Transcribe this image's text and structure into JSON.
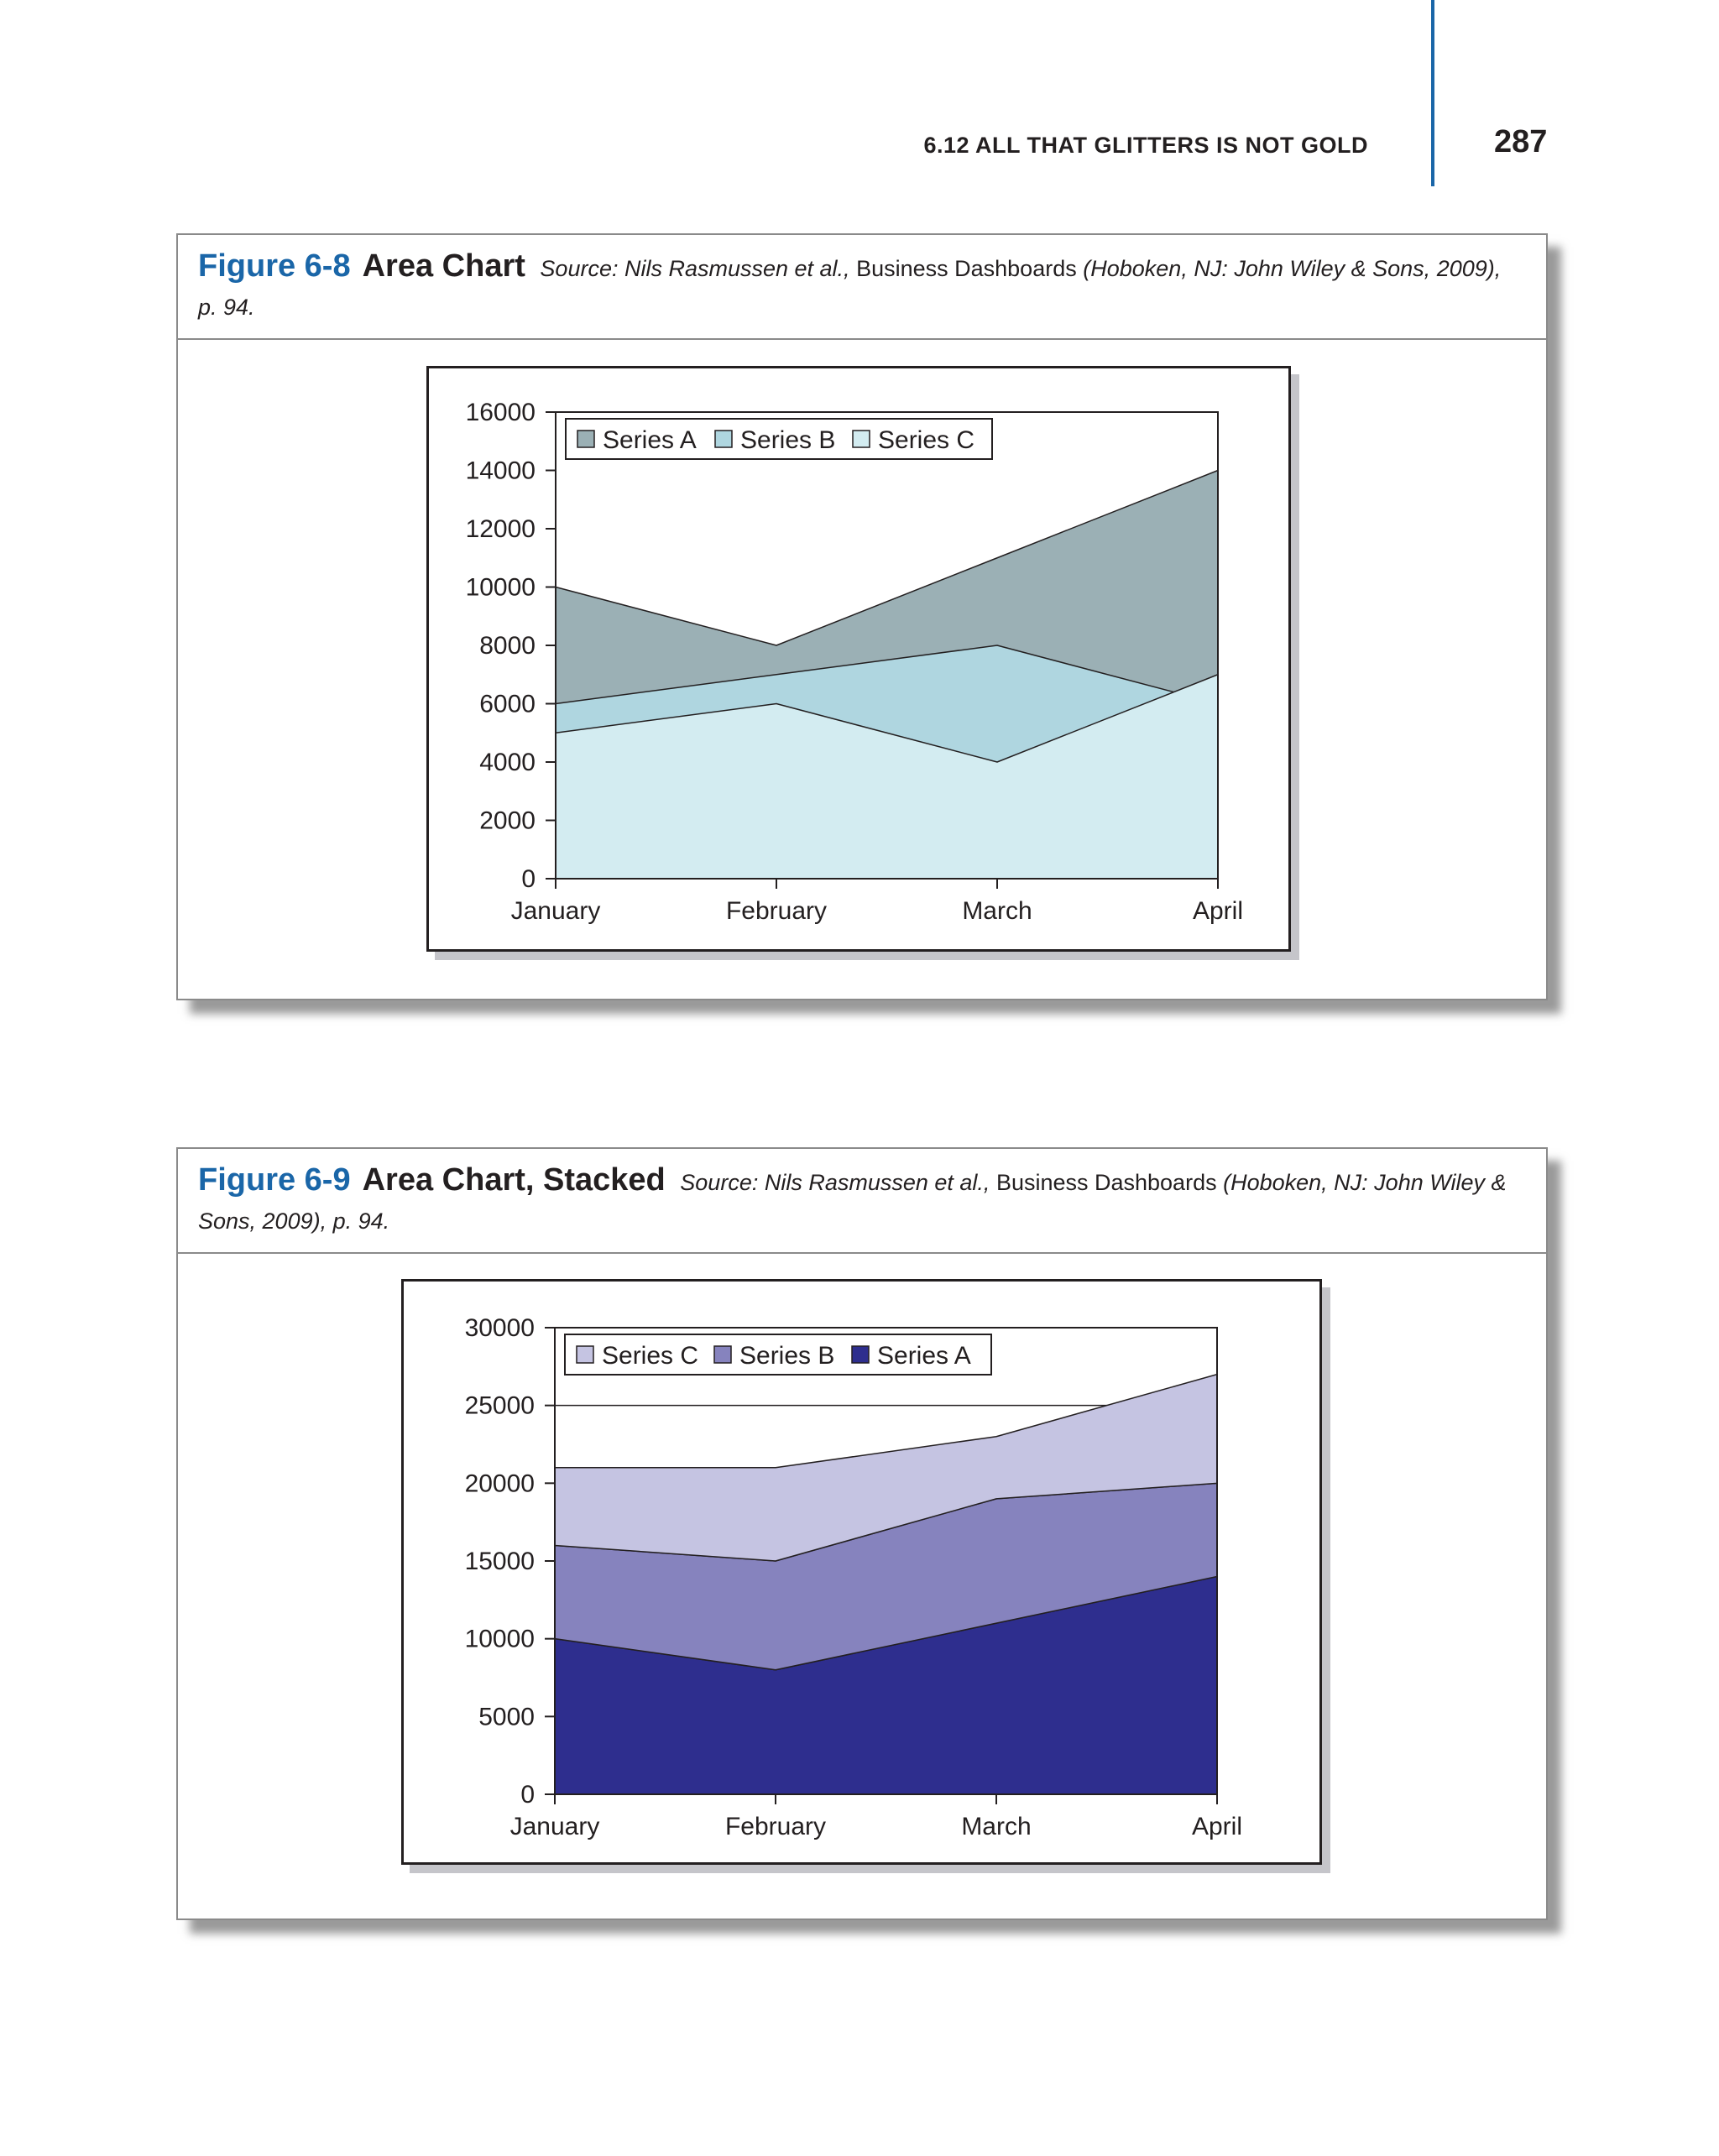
{
  "header": {
    "running_head": "6.12 ALL THAT GLITTERS IS NOT GOLD",
    "page_number": "287"
  },
  "figures": [
    {
      "number": "Figure 6-8",
      "title": "Area Chart",
      "source_prefix": "Source: Nils Rasmussen et al.,",
      "source_book": "Business Dashboards",
      "source_suffix": "(Hoboken, NJ: John Wiley & Sons, 2009), p. 94."
    },
    {
      "number": "Figure 6-9",
      "title": "Area Chart, Stacked",
      "source_prefix": "Source: Nils Rasmussen et al.,",
      "source_book": "Business Dashboards",
      "source_suffix": "(Hoboken, NJ: John Wiley & Sons, 2009), p. 94."
    }
  ],
  "chart_data": [
    {
      "type": "area",
      "stacked": false,
      "categories": [
        "January",
        "February",
        "March",
        "April"
      ],
      "series": [
        {
          "name": "Series A",
          "values": [
            10000,
            8000,
            11000,
            14000
          ],
          "color": "#9bb0b5"
        },
        {
          "name": "Series B",
          "values": [
            6000,
            7000,
            8000,
            6000
          ],
          "color": "#afd6e0"
        },
        {
          "name": "Series C",
          "values": [
            5000,
            6000,
            4000,
            7000
          ],
          "color": "#d3ecf1"
        }
      ],
      "ylim": [
        0,
        16000
      ],
      "yticks": [
        0,
        2000,
        4000,
        6000,
        8000,
        10000,
        12000,
        14000,
        16000
      ],
      "grid": false,
      "legend_position": "top-left"
    },
    {
      "type": "area",
      "stacked": true,
      "categories": [
        "January",
        "February",
        "March",
        "April"
      ],
      "series": [
        {
          "name": "Series A",
          "values": [
            10000,
            8000,
            11000,
            14000
          ],
          "color": "#2e2e8e"
        },
        {
          "name": "Series B",
          "values": [
            6000,
            7000,
            8000,
            6000
          ],
          "color": "#8683be"
        },
        {
          "name": "Series C",
          "values": [
            5000,
            6000,
            4000,
            7000
          ],
          "color": "#c5c4e2"
        }
      ],
      "legend_order": [
        "Series C",
        "Series B",
        "Series A"
      ],
      "ylim": [
        0,
        30000
      ],
      "yticks": [
        0,
        5000,
        10000,
        15000,
        20000,
        25000,
        30000
      ],
      "grid": true,
      "legend_position": "top-left"
    }
  ]
}
